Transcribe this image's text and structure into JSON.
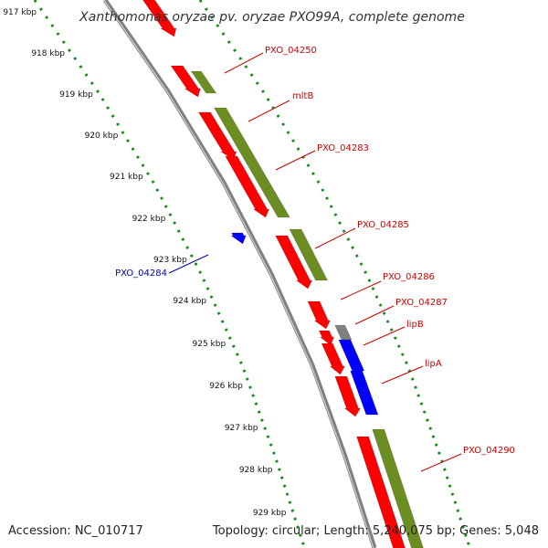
{
  "title": "Xanthomonas oryzae pv. oryzae PXO99A, complete genome",
  "footer": {
    "accession": "Accession: NC_010717",
    "summary": "Topology: circular; Length: 5,240,075 bp; Genes: 5,048"
  },
  "colors": {
    "backbone": "#888888",
    "forward_cds": "#ff0000",
    "reverse_cds": "#6b8e23",
    "blue_feature": "#0000ff",
    "other_feature": "#808080",
    "tick_green": "#1a8a1a",
    "label_red": "#cc0000",
    "label_blue": "#0000aa"
  },
  "ticks": [
    "917 kbp",
    "918 kbp",
    "919 kbp",
    "920 kbp",
    "921 kbp",
    "922 kbp",
    "923 kbp",
    "924 kbp",
    "925 kbp",
    "926 kbp",
    "927 kbp",
    "928 kbp",
    "929 kbp"
  ],
  "gene_labels": [
    {
      "text": "PXO_04250",
      "color": "red"
    },
    {
      "text": "mltB",
      "color": "red"
    },
    {
      "text": "PXO_04283",
      "color": "red"
    },
    {
      "text": "PXO_04285",
      "color": "red"
    },
    {
      "text": "PXO_04286",
      "color": "red"
    },
    {
      "text": "PXO_04287",
      "color": "red"
    },
    {
      "text": "lipB",
      "color": "red"
    },
    {
      "text": "lipA",
      "color": "red"
    },
    {
      "text": "PXO_04290",
      "color": "red"
    },
    {
      "text": "PXO_04284",
      "color": "blue"
    }
  ]
}
